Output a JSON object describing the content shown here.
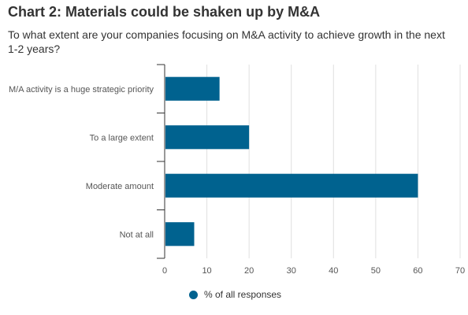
{
  "chart_data": {
    "type": "bar",
    "orientation": "horizontal",
    "title": "Chart 2: Materials could be shaken up by M&A",
    "subtitle": "To what extent are your companies focusing on M&A activity to achieve growth in the next 1-2 years?",
    "categories": [
      "M/A activity is a huge strategic priority",
      "To a large extent",
      "Moderate amount",
      "Not at all"
    ],
    "series": [
      {
        "name": "% of all responses",
        "values": [
          13,
          20,
          60,
          7
        ],
        "color": "#00628f"
      }
    ],
    "xlim": [
      0,
      70
    ],
    "xticks": [
      0,
      10,
      20,
      30,
      40,
      50,
      60,
      70
    ],
    "grid": true,
    "legend": "bottom"
  }
}
